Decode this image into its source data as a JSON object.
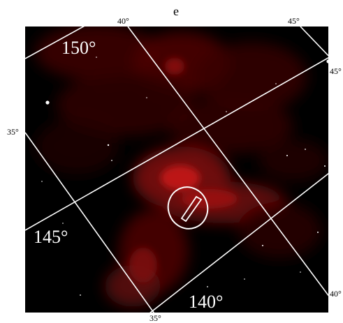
{
  "panel_letter": "e",
  "colors": {
    "background": "#000000",
    "emission_low": "#2a0000",
    "emission_mid": "#7a0a0a",
    "emission_high": "#c41a1a",
    "grid_lines": "#ffffff",
    "frame_text": "#000000"
  },
  "top_axis_labels": [
    "40°",
    "45°"
  ],
  "left_axis_labels": [
    "35°"
  ],
  "bottom_axis_labels": [
    "35°"
  ],
  "right_axis_labels": [
    "45°",
    "40°"
  ],
  "inner_labels": [
    "150°",
    "145°",
    "140°"
  ],
  "markers": [
    {
      "shape": "ellipse",
      "name": "target-region"
    },
    {
      "shape": "slit",
      "name": "slit-bar"
    }
  ]
}
